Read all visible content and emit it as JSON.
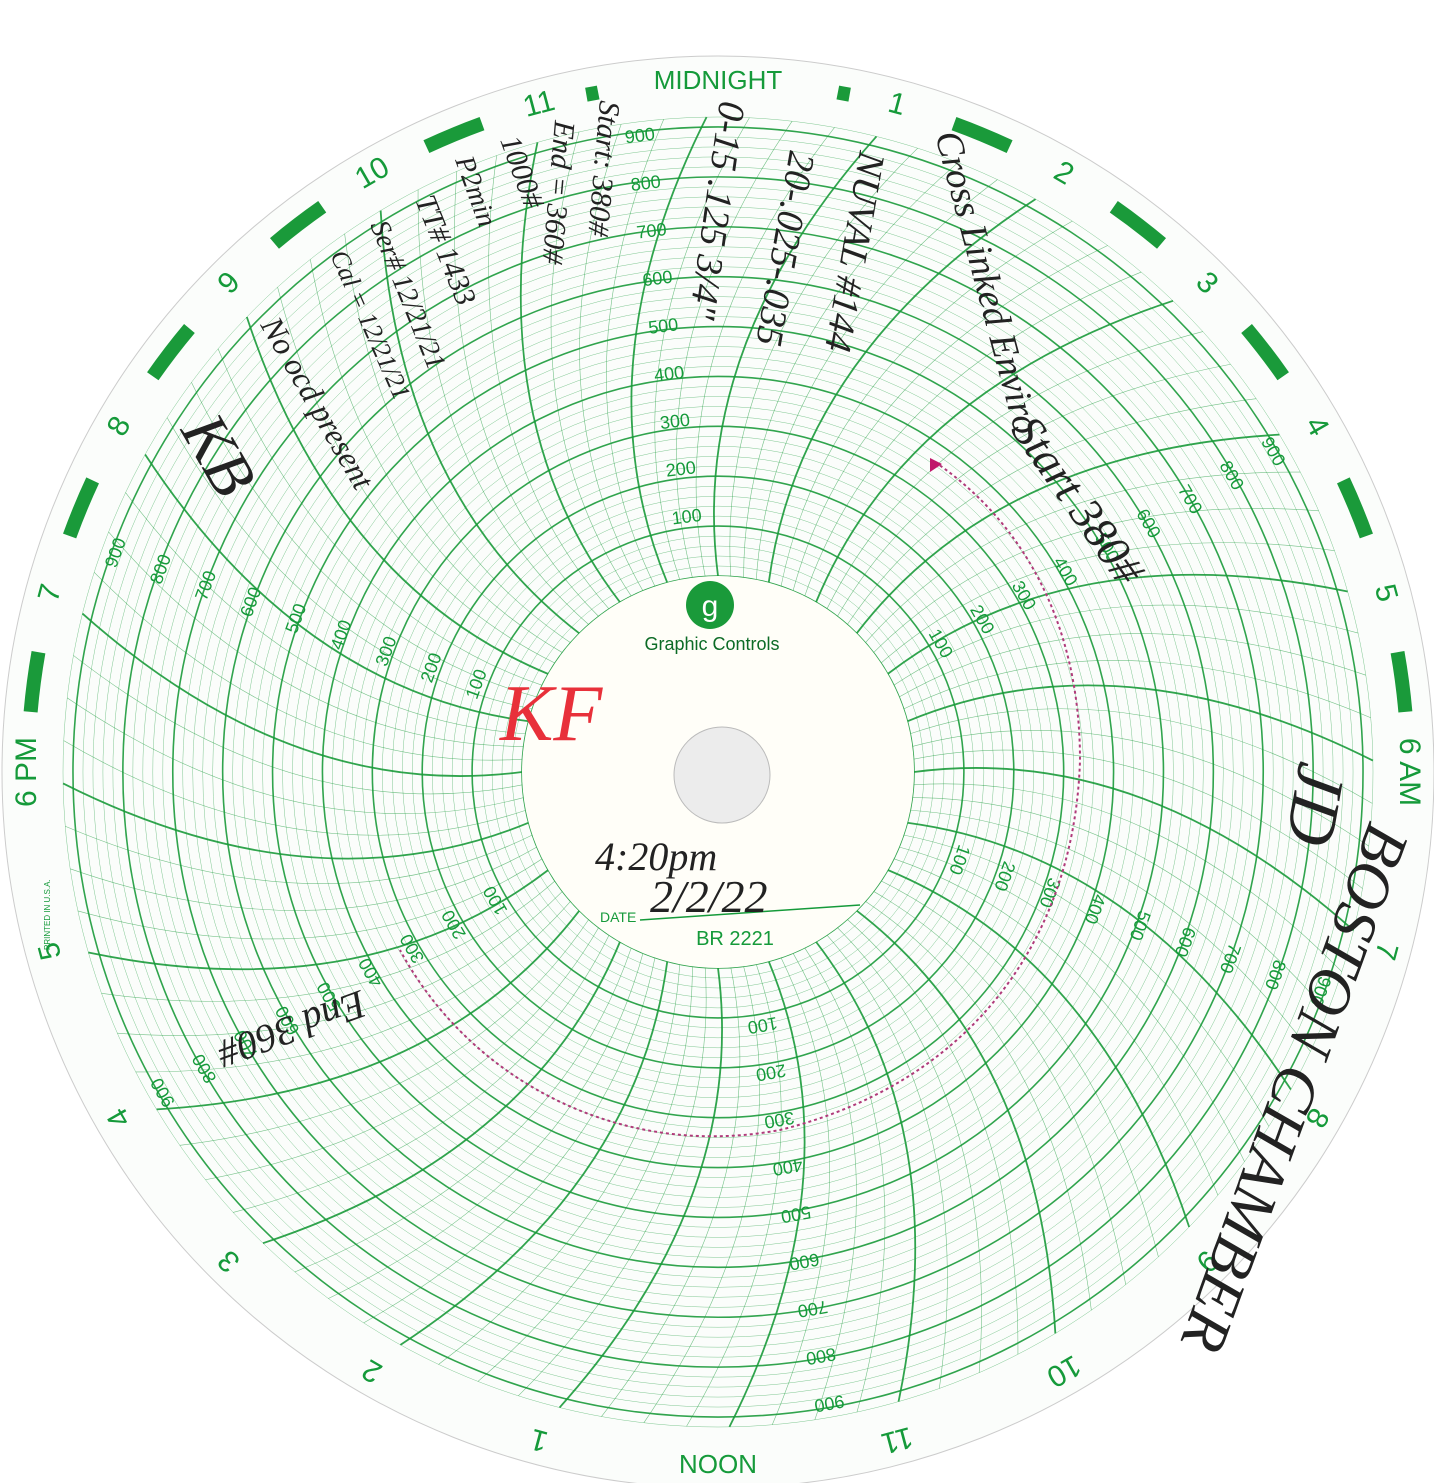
{
  "printed": {
    "hours": [
      "MIDNIGHT",
      "1",
      "2",
      "3",
      "4",
      "5",
      "6 AM",
      "7",
      "8",
      "9",
      "10",
      "11",
      "NOON",
      "1",
      "2",
      "3",
      "4",
      "5",
      "6 PM",
      "7",
      "8",
      "9",
      "10",
      "11"
    ],
    "scale": [
      "100",
      "200",
      "300",
      "400",
      "500",
      "600",
      "700",
      "800",
      "900"
    ],
    "logo": "g",
    "brand": "Graphic Controls",
    "date_label": "DATE",
    "chart_number": "BR 2221",
    "printed_in": "PRINTED IN U.S.A."
  },
  "handwritten": {
    "customer": "Cross Linked Enviro",
    "gauge": "NUVAL #144",
    "range": "20-.025-.035",
    "spec": "0-15 .125 3/4\"",
    "start_end": "Start: 380#",
    "end_note": "End = 360#",
    "test_pressure": "1000#",
    "duration": "P2min",
    "tag": "TT# 1433",
    "serial": "Ser# 12/21/21",
    "cal": "Cal = 12/21/21",
    "no_odd": "No ocd present",
    "initials": "KB",
    "red_initials": "KF",
    "time": "4:20pm",
    "date": "2/2/22",
    "start": "Start 380#",
    "end": "End 360#",
    "location": "BOSTON CHAMBER",
    "sign": "JD"
  }
}
